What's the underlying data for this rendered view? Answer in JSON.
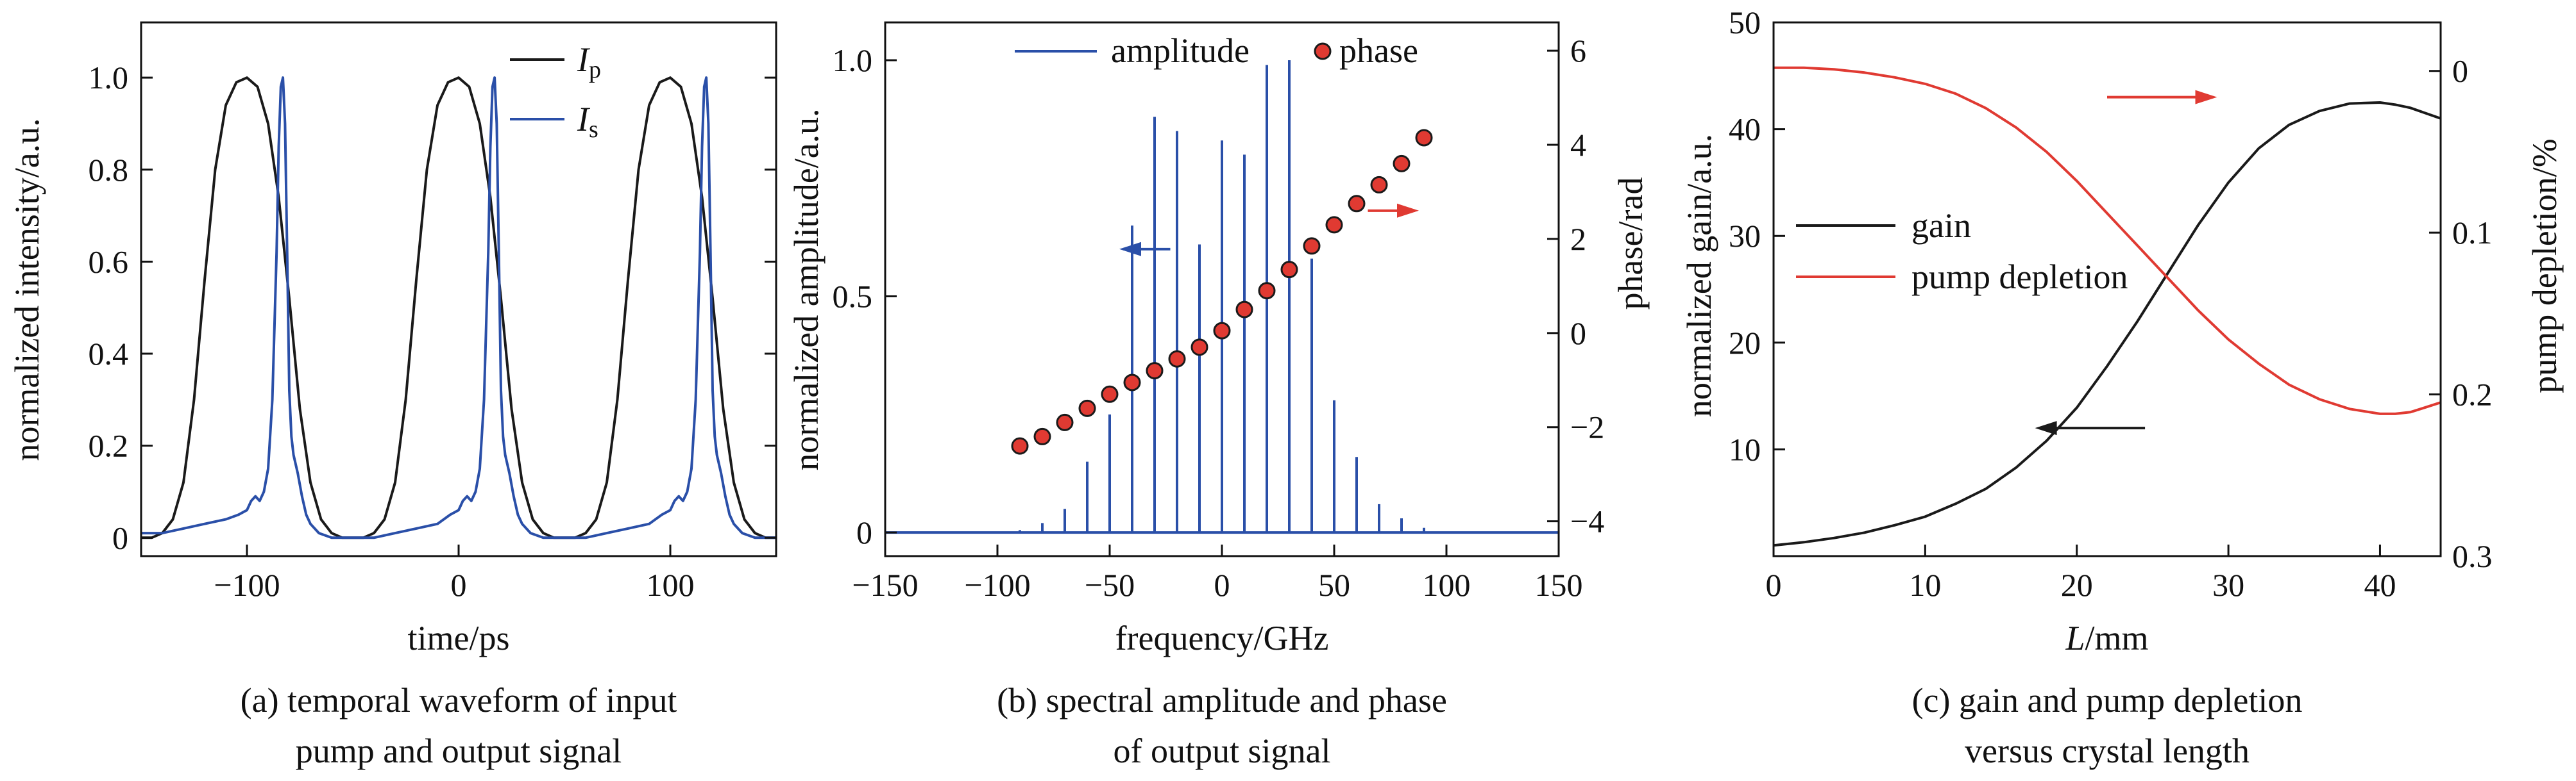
{
  "captions": [
    [
      "(a) temporal waveform of input",
      "pump and output signal"
    ],
    [
      "(b) spectral amplitude and phase",
      "of output signal"
    ],
    [
      "(c) gain and pump depletion",
      "versus crystal length"
    ]
  ],
  "colors": {
    "black": "#1a1a1a",
    "blue": "#2a4fa8",
    "red": "#e03a32",
    "marker_edge": "#1a1a1a"
  },
  "chart_data": [
    {
      "type": "line",
      "id": "a",
      "xlabel": "time/ps",
      "ylabel": "normalized intensity/a.u.",
      "xlim": [
        -150,
        150
      ],
      "ylim": [
        -0.04,
        1.12
      ],
      "xticks": [
        -100,
        0,
        100
      ],
      "xtick_labels": [
        "−100",
        "0",
        "100"
      ],
      "yticks": [
        0,
        0.2,
        0.4,
        0.6,
        0.8,
        1.0
      ],
      "ytick_labels": [
        "0",
        "0.2",
        "0.4",
        "0.6",
        "0.8",
        "1.0"
      ],
      "legend_position": "top-right",
      "series": [
        {
          "name_main": "I",
          "name_sub": "p",
          "color": "black",
          "x": [
            -150,
            -145,
            -140,
            -135,
            -130,
            -125,
            -120,
            -115,
            -110,
            -105,
            -100,
            -95,
            -90,
            -85,
            -80,
            -75,
            -70,
            -65,
            -60,
            -55,
            -50,
            -45,
            -40,
            -35,
            -30,
            -25,
            -20,
            -15,
            -10,
            -5,
            0,
            5,
            10,
            15,
            20,
            25,
            30,
            35,
            40,
            45,
            50,
            55,
            60,
            65,
            70,
            75,
            80,
            85,
            90,
            95,
            100,
            105,
            110,
            115,
            120,
            125,
            130,
            135,
            140,
            145,
            150
          ],
          "y": [
            0.0,
            0.0,
            0.01,
            0.04,
            0.12,
            0.3,
            0.56,
            0.8,
            0.94,
            0.99,
            1.0,
            0.98,
            0.9,
            0.74,
            0.52,
            0.28,
            0.12,
            0.04,
            0.01,
            0.0,
            0.0,
            0.0,
            0.01,
            0.04,
            0.12,
            0.3,
            0.56,
            0.8,
            0.94,
            0.99,
            1.0,
            0.98,
            0.9,
            0.74,
            0.52,
            0.28,
            0.12,
            0.04,
            0.01,
            0.0,
            0.0,
            0.0,
            0.01,
            0.04,
            0.12,
            0.3,
            0.56,
            0.8,
            0.94,
            0.99,
            1.0,
            0.98,
            0.9,
            0.74,
            0.52,
            0.28,
            0.12,
            0.04,
            0.01,
            0.0,
            0.0
          ]
        },
        {
          "name_main": "I",
          "name_sub": "s",
          "color": "blue",
          "x": [
            -150,
            -140,
            -130,
            -120,
            -110,
            -104,
            -100,
            -98,
            -96,
            -94,
            -92,
            -90,
            -88,
            -86,
            -85,
            -84,
            -83,
            -82,
            -81,
            -80,
            -79,
            -78,
            -76,
            -74,
            -72,
            -70,
            -66,
            -60,
            -50,
            -40,
            -30,
            -20,
            -10,
            -4,
            0,
            2,
            4,
            6,
            8,
            10,
            12,
            14,
            15,
            16,
            17,
            18,
            19,
            20,
            21,
            22,
            24,
            26,
            28,
            30,
            34,
            40,
            50,
            60,
            70,
            80,
            90,
            96,
            100,
            102,
            104,
            106,
            108,
            110,
            112,
            114,
            115,
            116,
            117,
            118,
            119,
            120,
            121,
            122,
            124,
            126,
            128,
            130,
            134,
            140,
            150
          ],
          "y": [
            0.01,
            0.01,
            0.02,
            0.03,
            0.04,
            0.05,
            0.06,
            0.08,
            0.09,
            0.08,
            0.1,
            0.15,
            0.3,
            0.62,
            0.85,
            0.98,
            1.0,
            0.9,
            0.62,
            0.32,
            0.22,
            0.18,
            0.14,
            0.09,
            0.05,
            0.03,
            0.01,
            0.0,
            0.0,
            0.0,
            0.01,
            0.02,
            0.03,
            0.05,
            0.06,
            0.08,
            0.09,
            0.08,
            0.1,
            0.15,
            0.3,
            0.62,
            0.85,
            0.98,
            1.0,
            0.9,
            0.62,
            0.32,
            0.22,
            0.18,
            0.14,
            0.09,
            0.05,
            0.03,
            0.01,
            0.0,
            0.0,
            0.0,
            0.01,
            0.02,
            0.03,
            0.05,
            0.06,
            0.08,
            0.09,
            0.08,
            0.1,
            0.15,
            0.3,
            0.62,
            0.85,
            0.98,
            1.0,
            0.9,
            0.62,
            0.32,
            0.22,
            0.18,
            0.14,
            0.09,
            0.05,
            0.03,
            0.01,
            0.0,
            0.0
          ]
        }
      ]
    },
    {
      "type": "bar",
      "id": "b",
      "xlabel": "frequency/GHz",
      "ylabel": "normalized amplitude/a.u.",
      "y2label": "phase/rad",
      "xlim": [
        -150,
        150
      ],
      "ylim": [
        -0.05,
        1.08
      ],
      "y2lim": [
        -4.74,
        6.6
      ],
      "xticks": [
        -150,
        -100,
        -50,
        0,
        50,
        100,
        150
      ],
      "xtick_labels": [
        "−150",
        "−100",
        "−50",
        "0",
        "50",
        "100",
        "150"
      ],
      "yticks": [
        0,
        0.5,
        1.0
      ],
      "ytick_labels": [
        "0",
        "0.5",
        "1.0"
      ],
      "y2ticks": [
        -4,
        -2,
        0,
        2,
        4,
        6
      ],
      "y2tick_labels": [
        "−4",
        "−2",
        "0",
        "2",
        "4",
        "6"
      ],
      "legend_position": "top",
      "arrows": [
        {
          "series": "amplitude",
          "direction": "left",
          "color": "blue",
          "x": [
            -23,
            -44
          ],
          "y": 0.6
        },
        {
          "series": "phase",
          "direction": "right",
          "color": "red",
          "x": [
            65,
            86
          ],
          "y": 2.6
        }
      ],
      "series": [
        {
          "name": "amplitude",
          "color": "blue",
          "style": "stick",
          "x": [
            -120,
            -110,
            -100,
            -90,
            -80,
            -70,
            -60,
            -50,
            -40,
            -30,
            -20,
            -10,
            0,
            10,
            20,
            30,
            40,
            50,
            60,
            70,
            80,
            90,
            100,
            110
          ],
          "y": [
            0.0,
            0.0,
            0.0,
            0.005,
            0.02,
            0.05,
            0.15,
            0.25,
            0.65,
            0.88,
            0.85,
            0.61,
            0.83,
            0.8,
            0.99,
            1.0,
            0.58,
            0.28,
            0.16,
            0.06,
            0.03,
            0.01,
            0.0,
            0.0
          ]
        },
        {
          "name": "phase",
          "color": "red",
          "style": "markers",
          "axis": "right",
          "x": [
            -90,
            -80,
            -70,
            -60,
            -50,
            -40,
            -30,
            -20,
            -10,
            0,
            10,
            20,
            30,
            40,
            50,
            60,
            70,
            80,
            90
          ],
          "y": [
            -2.4,
            -2.2,
            -1.9,
            -1.6,
            -1.3,
            -1.05,
            -0.8,
            -0.55,
            -0.3,
            0.05,
            0.5,
            0.9,
            1.35,
            1.85,
            2.3,
            2.75,
            3.15,
            3.6,
            4.15
          ]
        }
      ]
    },
    {
      "type": "line",
      "id": "c",
      "xlabel_main": "L",
      "xlabel_rest": "/mm",
      "ylabel": "normalized gain/a.u.",
      "y2label": "pump depletion/%",
      "xlim": [
        0,
        44
      ],
      "ylim": [
        0,
        50
      ],
      "y2lim": [
        0.3,
        -0.03
      ],
      "xticks": [
        0,
        10,
        20,
        30,
        40
      ],
      "xtick_labels": [
        "0",
        "10",
        "20",
        "30",
        "40"
      ],
      "yticks": [
        10,
        20,
        30,
        40,
        50
      ],
      "ytick_labels": [
        "10",
        "20",
        "30",
        "40",
        "50"
      ],
      "y2ticks": [
        0,
        0.1,
        0.2,
        0.3
      ],
      "y2tick_labels": [
        "0",
        "0.1",
        "0.2",
        "0.3"
      ],
      "legend_position": "center-left",
      "arrows": [
        {
          "series": "gain",
          "direction": "left",
          "color": "black",
          "x": [
            24.5,
            17.5
          ],
          "y": 12
        },
        {
          "series": "pump depletion",
          "direction": "right",
          "color": "red",
          "x": [
            22,
            29
          ],
          "y": 43
        }
      ],
      "series": [
        {
          "name": "gain",
          "color": "black",
          "axis": "left",
          "x": [
            0,
            2,
            4,
            6,
            8,
            10,
            12,
            14,
            16,
            18,
            20,
            22,
            24,
            26,
            28,
            30,
            32,
            34,
            36,
            38,
            40,
            41,
            42,
            43,
            44
          ],
          "y": [
            1.0,
            1.3,
            1.7,
            2.2,
            2.9,
            3.7,
            4.9,
            6.3,
            8.3,
            10.8,
            13.9,
            17.8,
            22.0,
            26.5,
            31.0,
            35.0,
            38.2,
            40.4,
            41.7,
            42.4,
            42.5,
            42.3,
            42.0,
            41.5,
            41.0
          ]
        },
        {
          "name": "pump depletion",
          "color": "red",
          "axis": "right",
          "x": [
            0,
            2,
            4,
            6,
            8,
            10,
            12,
            14,
            16,
            18,
            20,
            22,
            24,
            26,
            28,
            30,
            32,
            34,
            36,
            38,
            40,
            41,
            42,
            43,
            44
          ],
          "y": [
            -0.002,
            -0.002,
            -0.001,
            0.001,
            0.004,
            0.008,
            0.014,
            0.023,
            0.035,
            0.05,
            0.068,
            0.088,
            0.108,
            0.128,
            0.148,
            0.166,
            0.181,
            0.194,
            0.203,
            0.209,
            0.212,
            0.212,
            0.211,
            0.208,
            0.205
          ]
        }
      ]
    }
  ]
}
